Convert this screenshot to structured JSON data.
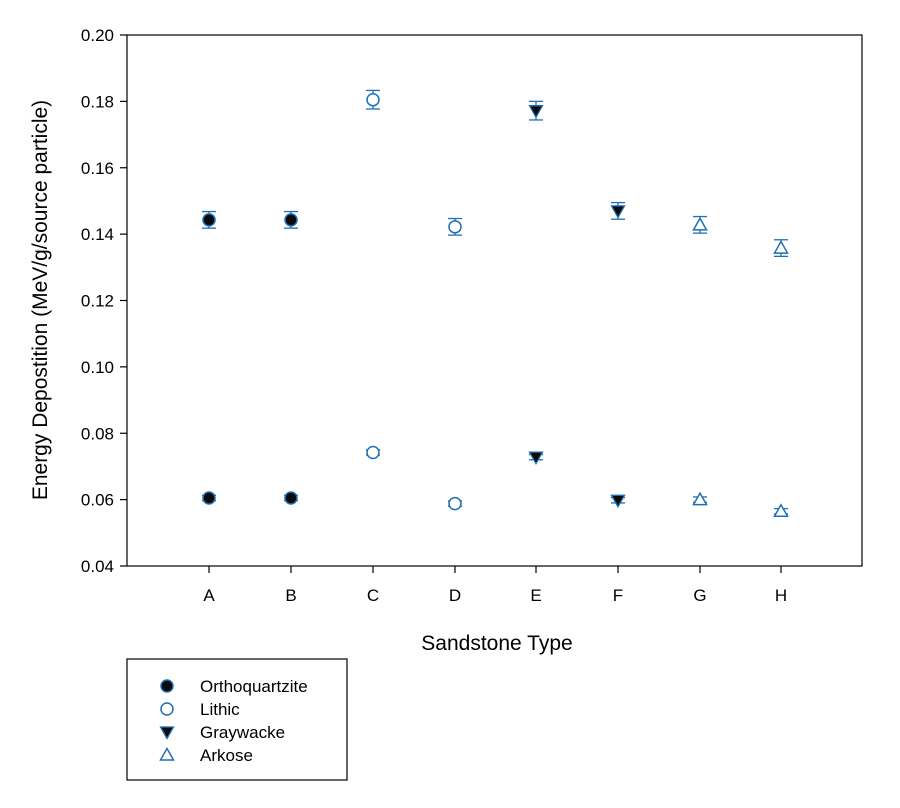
{
  "chart_data": {
    "type": "scatter",
    "xlabel": "Sandstone Type",
    "ylabel": "Energy Depostition (MeV/g/source particle)",
    "categories": [
      "A",
      "B",
      "C",
      "D",
      "E",
      "F",
      "G",
      "H"
    ],
    "ylim": [
      0.04,
      0.2
    ],
    "yticks": [
      "0.04",
      "0.06",
      "0.08",
      "0.10",
      "0.12",
      "0.14",
      "0.16",
      "0.18",
      "0.20"
    ],
    "grid": false,
    "legend_position": "bottom-left",
    "colors": {
      "marker": "#1F6FB5",
      "fill_dark": "#0a0a0a",
      "axis": "#000000"
    },
    "series": [
      {
        "name": "Orthoquartzite",
        "marker": "filled-circle",
        "points": [
          {
            "x": "A",
            "y": 0.1443,
            "err": 0.0025
          },
          {
            "x": "B",
            "y": 0.1443,
            "err": 0.0025
          },
          {
            "x": "A",
            "y": 0.0605,
            "err": 0.0008
          },
          {
            "x": "B",
            "y": 0.0605,
            "err": 0.0008
          }
        ]
      },
      {
        "name": "Lithic",
        "marker": "open-circle",
        "points": [
          {
            "x": "C",
            "y": 0.1805,
            "err": 0.0028
          },
          {
            "x": "D",
            "y": 0.1422,
            "err": 0.0025
          },
          {
            "x": "C",
            "y": 0.0742,
            "err": 0.0008
          },
          {
            "x": "D",
            "y": 0.0588,
            "err": 0.0008
          }
        ]
      },
      {
        "name": "Graywacke",
        "marker": "filled-triangle-down",
        "points": [
          {
            "x": "E",
            "y": 0.1772,
            "err": 0.0028
          },
          {
            "x": "F",
            "y": 0.147,
            "err": 0.0025
          },
          {
            "x": "E",
            "y": 0.0728,
            "err": 0.0008
          },
          {
            "x": "F",
            "y": 0.0598,
            "err": 0.0008
          }
        ]
      },
      {
        "name": "Arkose",
        "marker": "open-triangle-up",
        "points": [
          {
            "x": "G",
            "y": 0.1428,
            "err": 0.0025
          },
          {
            "x": "H",
            "y": 0.1358,
            "err": 0.0025
          },
          {
            "x": "G",
            "y": 0.06,
            "err": 0.0008
          },
          {
            "x": "H",
            "y": 0.0565,
            "err": 0.0008
          }
        ]
      }
    ]
  }
}
